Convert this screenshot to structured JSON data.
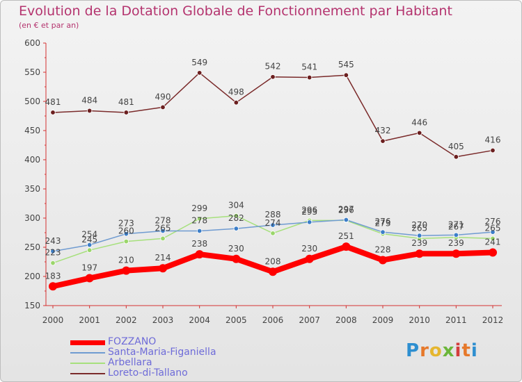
{
  "title": "Evolution de la Dotation Globale de Fonctionnement par Habitant",
  "subtitle": "(en € et par an)",
  "logo_text": "Proxiti",
  "chart_data": {
    "type": "line",
    "title": "Evolution de la Dotation Globale de Fonctionnement par Habitant",
    "subtitle": "(en € et par an)",
    "xlabel": "",
    "ylabel": "",
    "x": [
      "2000",
      "2001",
      "2002",
      "2003",
      "2004",
      "2005",
      "2006",
      "2007",
      "2008",
      "2009",
      "2010",
      "2011",
      "2012"
    ],
    "ylim": [
      150,
      600
    ],
    "yticks": [
      150,
      200,
      250,
      300,
      350,
      400,
      450,
      500,
      550,
      600
    ],
    "grid": false,
    "legend_position": "bottom-left",
    "series": [
      {
        "name": "FOZZANO",
        "color": "#ff0000",
        "values": [
          183,
          197,
          210,
          214,
          238,
          230,
          208,
          230,
          251,
          228,
          239,
          239,
          241
        ]
      },
      {
        "name": "Santa-Maria-Figaniella",
        "color": "#6f9bd1",
        "values": [
          243,
          254,
          273,
          278,
          278,
          282,
          288,
          293,
          297,
          276,
          270,
          271,
          276
        ]
      },
      {
        "name": "Arbellara",
        "color": "#a6e07c",
        "values": [
          223,
          245,
          260,
          265,
          299,
          304,
          274,
          296,
          296,
          273,
          265,
          267,
          265
        ]
      },
      {
        "name": "Loreto-di-Tallano",
        "color": "#7a2a2a",
        "values": [
          481,
          484,
          481,
          490,
          549,
          498,
          542,
          541,
          545,
          432,
          446,
          405,
          416
        ]
      }
    ]
  }
}
